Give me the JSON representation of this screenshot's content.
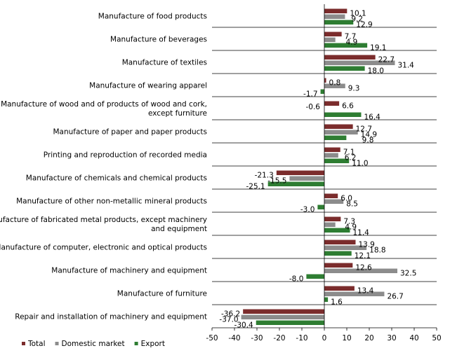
{
  "chart_data": {
    "type": "bar",
    "orientation": "horizontal",
    "categories": [
      [
        "Manufacture of food products"
      ],
      [
        "Manufacture of beverages"
      ],
      [
        "Manufacture of textiles"
      ],
      [
        "Manufacture of wearing apparel"
      ],
      [
        "Manufacture of wood and of products of wood and cork,",
        "except furniture"
      ],
      [
        "Manufacture of paper and paper products"
      ],
      [
        "Printing and reproduction of recorded media"
      ],
      [
        "Manufacture of chemicals and chemical products"
      ],
      [
        "Manufacture of other non-metallic mineral products"
      ],
      [
        "Manufacture of fabricated metal products, except machinery",
        "and equipment"
      ],
      [
        "Manufacture of computer, electronic and optical products"
      ],
      [
        "Manufacture of machinery and equipment"
      ],
      [
        "Manufacture of furniture"
      ],
      [
        "Repair and installation of machinery and equipment"
      ]
    ],
    "series": [
      {
        "name": "Total",
        "color": "#7b2c2c",
        "values": [
          10.1,
          7.7,
          22.7,
          0.8,
          6.6,
          12.7,
          7.1,
          -21.3,
          6.0,
          7.3,
          13.9,
          12.6,
          13.4,
          -36.2
        ],
        "labels": [
          "10.1",
          "7.7",
          "22.7",
          "0.8",
          "6.6",
          "12.7",
          "7.1",
          "-21.3",
          "6.0",
          "7.3",
          "13.9",
          "12.6",
          "13.4",
          "-36.2"
        ]
      },
      {
        "name": "Domestic market",
        "color": "#8c8c8c",
        "values": [
          9.2,
          4.9,
          31.4,
          9.3,
          null,
          14.9,
          6.2,
          -15.5,
          8.5,
          4.9,
          18.8,
          32.5,
          26.7,
          -37.0
        ],
        "labels": [
          "9.2",
          "4.9",
          "31.4",
          "9.3",
          "",
          "14.9",
          "6.2",
          "-15.5",
          "8.5",
          "4.9",
          "18.8",
          "32.5",
          "26.7",
          "-37.0"
        ]
      },
      {
        "name": "Export",
        "color": "#2e7d32",
        "values": [
          12.9,
          19.1,
          18.0,
          -1.7,
          16.4,
          9.8,
          11.0,
          -25.1,
          -3.0,
          11.4,
          12.1,
          -8.0,
          1.6,
          -30.4
        ],
        "labels": [
          "12.9",
          "19.1",
          "18.0",
          "-1.7",
          "16.4",
          "9.8",
          "11.0",
          "-25.1",
          "-3.0",
          "11.4",
          "12.1",
          "-8.0",
          "1.6",
          "-30.4"
        ]
      }
    ],
    "extra_labels": [
      {
        "text": "-0.6",
        "category_index": 4
      }
    ],
    "xlim": [
      -50,
      50
    ],
    "xticks": [
      "-50",
      "-40",
      "-30",
      "-20",
      "-10",
      "0",
      "10",
      "20",
      "30",
      "40",
      "50"
    ],
    "title": "",
    "xlabel": "",
    "ylabel": "",
    "grid": false,
    "legend_position": "bottom-left",
    "category_separators": true
  }
}
